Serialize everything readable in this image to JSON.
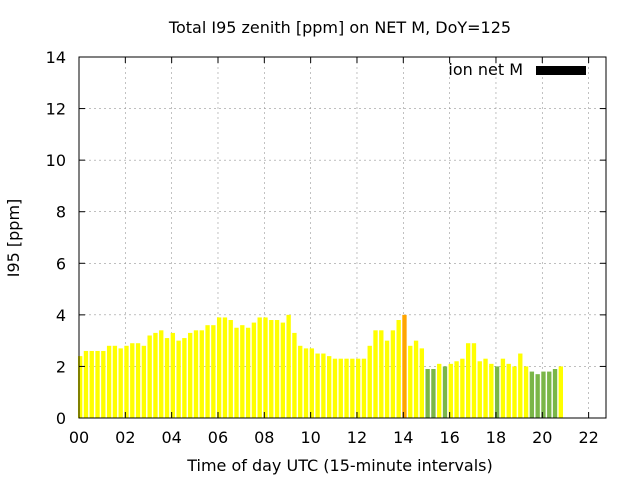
{
  "chart_data": {
    "type": "bar",
    "title": "Total I95 zenith [ppm] on NET M, DoY=125",
    "xlabel": "Time of day UTC (15-minute intervals)",
    "ylabel": "I95 [ppm]",
    "ylim": [
      0,
      14
    ],
    "xlim": [
      0,
      22.75
    ],
    "grid": true,
    "legend": {
      "label": "ion net M",
      "color": "#000000",
      "placement": "top-right"
    },
    "x_ticks": [
      "00",
      "02",
      "04",
      "06",
      "08",
      "10",
      "12",
      "14",
      "16",
      "18",
      "20",
      "22"
    ],
    "y_ticks": [
      "0",
      "2",
      "4",
      "6",
      "8",
      "10",
      "12",
      "14"
    ],
    "bar_interval_hours": 0.25,
    "colors": {
      "yellow": "#ffff00",
      "orange": "#ffa500",
      "green": "#7ab648"
    },
    "values": [
      2.4,
      2.6,
      2.6,
      2.6,
      2.6,
      2.8,
      2.8,
      2.7,
      2.8,
      2.9,
      2.9,
      2.8,
      3.2,
      3.3,
      3.4,
      3.1,
      3.3,
      3.0,
      3.1,
      3.3,
      3.4,
      3.4,
      3.6,
      3.6,
      3.9,
      3.9,
      3.8,
      3.5,
      3.6,
      3.5,
      3.7,
      3.9,
      3.9,
      3.8,
      3.8,
      3.7,
      4.0,
      3.3,
      2.8,
      2.7,
      2.7,
      2.5,
      2.5,
      2.4,
      2.3,
      2.3,
      2.3,
      2.3,
      2.3,
      2.3,
      2.8,
      3.4,
      3.4,
      3.0,
      3.4,
      3.8,
      4.0,
      2.8,
      3.0,
      2.7,
      1.9,
      1.9,
      2.1,
      2.0,
      2.1,
      2.2,
      2.3,
      2.9,
      2.9,
      2.2,
      2.3,
      2.1,
      2.0,
      2.3,
      2.1,
      2.0,
      2.5,
      2.0,
      1.8,
      1.7,
      1.8,
      1.8,
      1.9,
      2.0
    ],
    "bar_colors": [
      "yellow",
      "yellow",
      "yellow",
      "yellow",
      "yellow",
      "yellow",
      "yellow",
      "yellow",
      "yellow",
      "yellow",
      "yellow",
      "yellow",
      "yellow",
      "yellow",
      "yellow",
      "yellow",
      "yellow",
      "yellow",
      "yellow",
      "yellow",
      "yellow",
      "yellow",
      "yellow",
      "yellow",
      "yellow",
      "yellow",
      "yellow",
      "yellow",
      "yellow",
      "yellow",
      "yellow",
      "yellow",
      "yellow",
      "yellow",
      "yellow",
      "yellow",
      "yellow",
      "yellow",
      "yellow",
      "yellow",
      "yellow",
      "yellow",
      "yellow",
      "yellow",
      "yellow",
      "yellow",
      "yellow",
      "yellow",
      "yellow",
      "yellow",
      "yellow",
      "yellow",
      "yellow",
      "yellow",
      "yellow",
      "yellow",
      "orange",
      "yellow",
      "yellow",
      "yellow",
      "green",
      "green",
      "yellow",
      "green",
      "yellow",
      "yellow",
      "yellow",
      "yellow",
      "yellow",
      "yellow",
      "yellow",
      "yellow",
      "green",
      "yellow",
      "yellow",
      "yellow",
      "yellow",
      "yellow",
      "green",
      "green",
      "green",
      "green",
      "green",
      "yellow"
    ]
  }
}
